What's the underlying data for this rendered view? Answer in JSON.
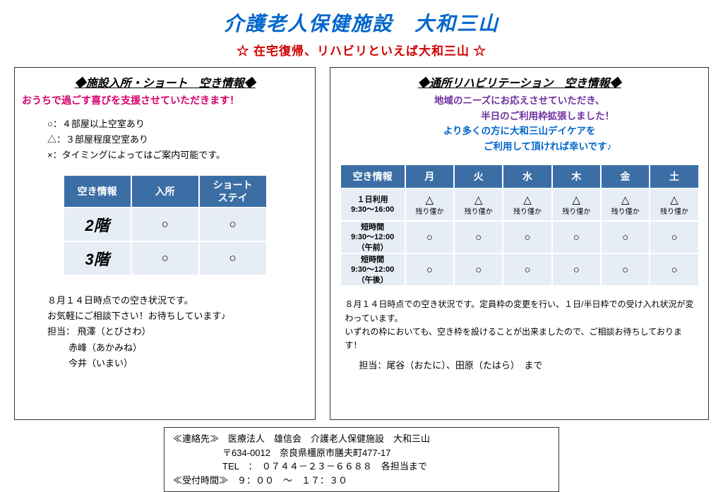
{
  "header": {
    "main_title": "介護老人保健施設　大和三山",
    "sub_title": "☆ 在宅復帰、リハビリといえば大和三山 ☆"
  },
  "left": {
    "title": "◆施設入所・ショート　空き情報◆",
    "tagline": "おうちで過ごす喜びを支援させていただきます！",
    "legend": {
      "l1": "○：４部屋以上空室あり",
      "l2": "△：３部屋程度空室あり",
      "l3": "×：タイミングによってはご案内可能です。"
    },
    "table": {
      "headers": [
        "空き情報",
        "入所",
        "ショート\nステイ"
      ],
      "rows": [
        {
          "label": "2階",
          "cells": [
            "○",
            "○"
          ]
        },
        {
          "label": "3階",
          "cells": [
            "○",
            "○"
          ]
        }
      ]
    },
    "note1": "８月１４日時点での空き状況です。",
    "note2": "お気軽にご相談下さい！お待ちしています♪",
    "contact_label": "担当：",
    "contacts": [
      "飛澤（とびさわ）",
      "赤峰（あかみね）",
      "今井（いまい）"
    ]
  },
  "right": {
    "title": "◆通所リハビリテーション　空き情報◆",
    "tagline_l1": "地域のニーズにお応えさせていただき、",
    "tagline_l2": "半日のご利用枠拡張しました！",
    "tagline_l3": "より多くの方に大和三山デイケアを",
    "tagline_l4": "ご利用して頂ければ幸いです♪",
    "table": {
      "headers": [
        "空き情報",
        "月",
        "火",
        "水",
        "木",
        "金",
        "土"
      ],
      "rows": [
        {
          "label": "１日利用\n9:30～16:00",
          "cells": [
            {
              "mark": "△",
              "sub": "残り僅か"
            },
            {
              "mark": "△",
              "sub": "残り僅か"
            },
            {
              "mark": "△",
              "sub": "残り僅か"
            },
            {
              "mark": "△",
              "sub": "残り僅か"
            },
            {
              "mark": "△",
              "sub": "残り僅か"
            },
            {
              "mark": "△",
              "sub": "残り僅か"
            }
          ]
        },
        {
          "label": "短時間\n9:30～12:00\n（午前）",
          "cells": [
            {
              "mark": "○",
              "sub": ""
            },
            {
              "mark": "○",
              "sub": ""
            },
            {
              "mark": "○",
              "sub": ""
            },
            {
              "mark": "○",
              "sub": ""
            },
            {
              "mark": "○",
              "sub": ""
            },
            {
              "mark": "○",
              "sub": ""
            }
          ]
        },
        {
          "label": "短時間\n9:30～12:00\n（午後）",
          "cells": [
            {
              "mark": "○",
              "sub": ""
            },
            {
              "mark": "○",
              "sub": ""
            },
            {
              "mark": "○",
              "sub": ""
            },
            {
              "mark": "○",
              "sub": ""
            },
            {
              "mark": "○",
              "sub": ""
            },
            {
              "mark": "○",
              "sub": ""
            }
          ]
        }
      ]
    },
    "note1": "８月１４日時点での空き状況です。定員枠の変更を行い、１日/半日枠での受け入れ状況が変わっています。",
    "note2": "いずれの枠においても、空き枠を設けることが出来ましたので、ご相談お待ちしております！",
    "contact": "担当：尾谷（おたに）、田原（たはら）　まで"
  },
  "footer": {
    "l1": "≪連絡先≫　医療法人　雄信会　介護老人保健施設　大和三山",
    "l2": "〒634-0012　奈良県橿原市膳夫町477-17",
    "l3": "TEL　：　０７４４－２３－６６８８　各担当まで",
    "l4": "≪受付時間≫　９：００　～　１７：３０"
  },
  "colors": {
    "title_blue": "#0066cc",
    "subtitle_red": "#d00000",
    "magenta": "#d6006c",
    "purple": "#7030a0",
    "table_header_bg": "#3b6ea5",
    "table_cell_bg": "#e6edf5"
  }
}
